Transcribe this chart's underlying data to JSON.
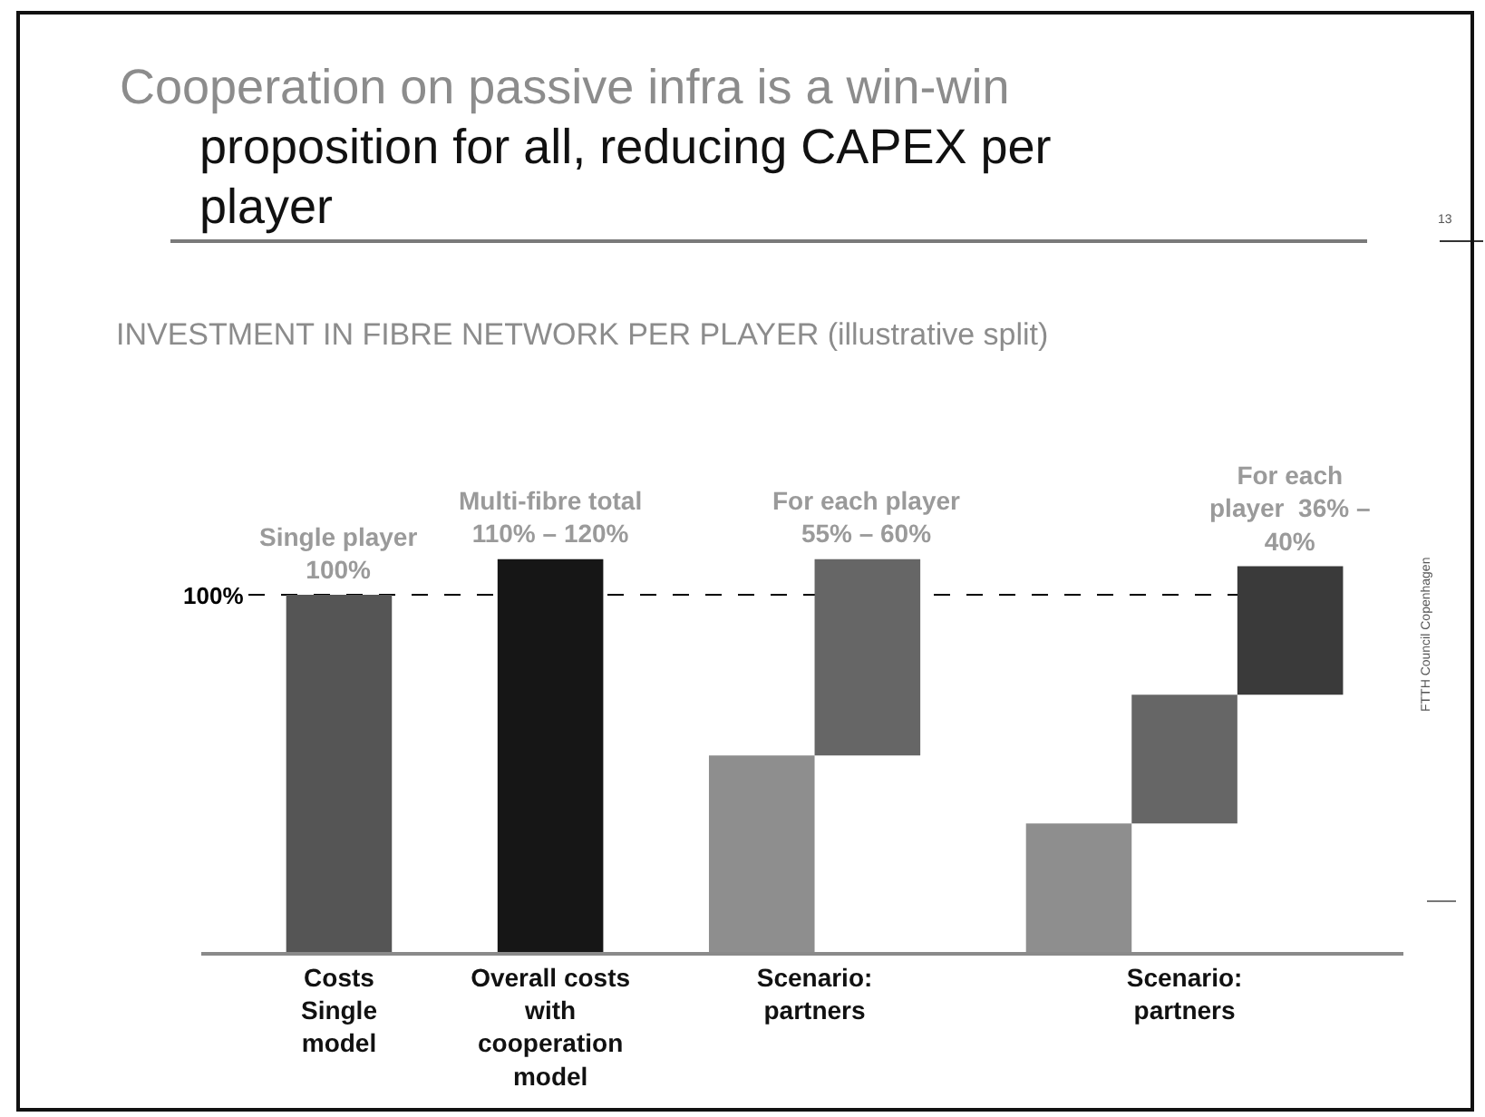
{
  "chart_data": {
    "type": "bar",
    "stacked": true,
    "title": "Cooperation on passive infra is a win-win\nproposition for all, reducing CAPEX per\nplayer",
    "subtitle": "INVESTMENT IN FIBRE NETWORK PER PLAYER (illustrative split)",
    "categories": [
      "Costs\nSingle\nmodel",
      "Overall costs\nwith\ncooperation\nmodel",
      "Scenario:\npartners",
      "Scenario:\npartners"
    ],
    "series": [
      {
        "values": [
          100,
          110,
          55,
          36
        ],
        "colors": [
          "#555555",
          "#161616",
          "#8e8e8e",
          "#8e8e8e"
        ],
        "value_labels": [
          "Single player\n100%",
          "Multi-fibre total\n110% – 120%",
          null,
          null
        ]
      },
      {
        "values": [
          null,
          null,
          55,
          36
        ],
        "colors": [
          null,
          null,
          "#666666",
          "#666666"
        ],
        "value_labels": [
          null,
          null,
          "For each player\n55% – 60%",
          null
        ]
      },
      {
        "values": [
          null,
          null,
          null,
          36
        ],
        "colors": [
          null,
          null,
          null,
          "#3a3a3a"
        ],
        "value_labels": [
          null,
          null,
          null,
          "For each\nplayer  36% –\n40%"
        ]
      }
    ],
    "ref_lines": [
      {
        "axis": "y",
        "value": 100,
        "label": "100%",
        "line_style": "dashed",
        "color": "#000000"
      }
    ],
    "annotations": [
      "13",
      "FTTH Council Copenhagen"
    ]
  }
}
